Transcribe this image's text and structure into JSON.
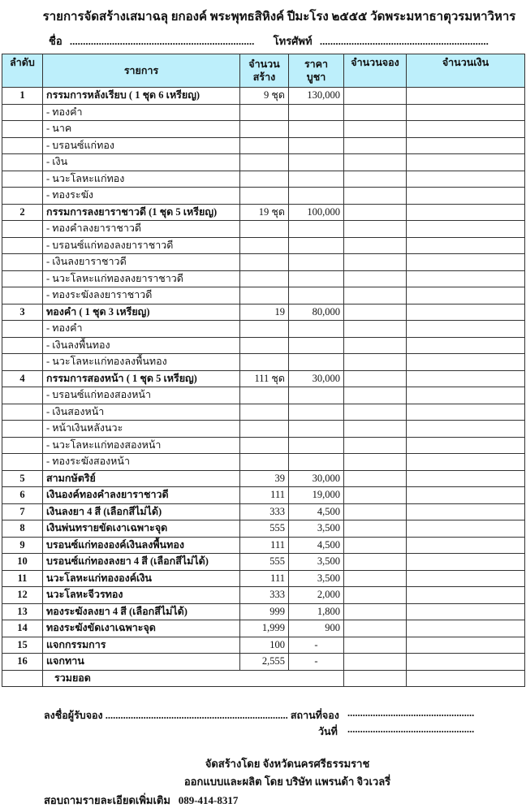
{
  "title": "รายการจัดสร้างเสมาฉลุ ยกองค์ พระพุทธสิหิงค์ ปีมะโรง ๒๕๕๕    วัดพระมหาธาตุวรมหาวิหาร",
  "name_label": "ชื่อ",
  "name_dots": "......................................................................",
  "phone_label": "โทรศัพท์",
  "phone_dots": "................................................................",
  "table": {
    "headers": {
      "no": "ลำดับ",
      "item": "รายการ",
      "built_1": "จำนวน",
      "built_2": "สร้าง",
      "price_1": "ราคา",
      "price_2": "บูชา",
      "reserved": "จำนวนจอง",
      "amount": "จำนวนเงิน"
    },
    "rows": [
      {
        "no": "1",
        "item": "กรรมการหลังเรียบ   ( 1 ชุด 6 เหรียญ)",
        "built": "9 ชุด",
        "price": "130,000",
        "main": true
      },
      {
        "item": "- ทองคำ"
      },
      {
        "item": "-  นาค"
      },
      {
        "item": "- บรอนซ์แก่ทอง"
      },
      {
        "item": "- เงิน"
      },
      {
        "item": "- นวะโลหะแก่ทอง"
      },
      {
        "item": "- ทองระฆัง"
      },
      {
        "no": "2",
        "item": "กรรมการลงยาราชาวดี (1 ชุด 5 เหรียญ)",
        "built": "19 ชุด",
        "price": "100,000",
        "main": true
      },
      {
        "item": "- ทองคำลงยาราชาวดี"
      },
      {
        "item": "- บรอนซ์แก่ทองลงยาราชาวดี"
      },
      {
        "item": "- เงินลงยาราชาวดี"
      },
      {
        "item": "- นวะโลหะแก่ทองลงยาราชาวดี"
      },
      {
        "item": "- ทองระฆังลงยาราชาวดี"
      },
      {
        "no": "3",
        "item": "ทองคำ ( 1 ชุด 3 เหรียญ)",
        "built": "19",
        "price": "80,000",
        "main": true
      },
      {
        "item": "- ทองคำ"
      },
      {
        "item": "- เงินลงพื้นทอง"
      },
      {
        "item": "- นวะโลหะแก่ทองลงพื้นทอง"
      },
      {
        "no": "4",
        "item": "กรรมการสองหน้า ( 1 ชุด 5 เหรียญ)",
        "built": "111 ชุด",
        "price": "30,000",
        "main": true
      },
      {
        "item": "- บรอนซ์แก่ทองสองหน้า"
      },
      {
        "item": "- เงินสองหน้า"
      },
      {
        "item": "-  หน้าเงินหลังนวะ"
      },
      {
        "item": "- นวะโลหะแก่ทองสองหน้า"
      },
      {
        "item": "- ทองระฆังสองหน้า"
      },
      {
        "no": "5",
        "item": "สามกษัตริย์",
        "built": "39",
        "price": "30,000",
        "main": true
      },
      {
        "no": "6",
        "item": "เงินองค์ทองคำลงยาราชาวดี",
        "built": "111",
        "price": "19,000",
        "main": true
      },
      {
        "no": "7",
        "item": "เงินลงยา 4 สี    (เลือกสีไม่ได้)",
        "built": "333",
        "price": "4,500",
        "main": true
      },
      {
        "no": "8",
        "item": "เงินพ่นทรายขัดเงาเฉพาะจุด",
        "built": "555",
        "price": "3,500",
        "main": true
      },
      {
        "no": "9",
        "item": "บรอนซ์แก่ทององค์เงินลงพื้นทอง",
        "built": "111",
        "price": "4,500",
        "main": true
      },
      {
        "no": "10",
        "item": "บรอนซ์แก่ทองลงยา 4 สี (เลือกสีไม่ได้)",
        "built": "555",
        "price": "3,500",
        "main": true
      },
      {
        "no": "11",
        "item": "นวะโลหะแก่ทององค์เงิน",
        "built": "111",
        "price": "3,500",
        "main": true
      },
      {
        "no": "12",
        "item": "นวะโลหะจีวรทอง",
        "built": "333",
        "price": "2,000",
        "main": true
      },
      {
        "no": "13",
        "item": "ทองระฆังลงยา 4 สี (เลือกสีไม่ได้)",
        "built": "999",
        "price": "1,800",
        "main": true
      },
      {
        "no": "14",
        "item": "ทองระฆังขัดเงาเฉพาะจุด",
        "built": "1,999",
        "price": "900",
        "main": true
      },
      {
        "no": "15",
        "item": "แจกกรรมการ",
        "built": "100",
        "price": "-",
        "main": true
      },
      {
        "no": "16",
        "item": "แจกทาน",
        "built": "2,555",
        "price": "-",
        "main": true
      }
    ],
    "total_label": "รวมยอด"
  },
  "signature": {
    "signer_label": "ลงชื่อผู้รับจอง",
    "signer_dots": "........................................................................",
    "place_label": "สถานที่จอง",
    "place_dots": "..................................................",
    "date_label": "วันที่",
    "date_dots": ".................................................."
  },
  "footer": {
    "made_by": "จัดสร้างโดย จังหวัดนครศรีธรรมราช",
    "designed_by": "ออกแบบและผลิต โดย บริษัท แพรนด้า จิวเวลรี่",
    "contact_label": "สอบถามรายละเอียดเพิ่มเติม",
    "phone": "089-414-8317"
  },
  "colors": {
    "header_bg": "#bdeffb"
  }
}
